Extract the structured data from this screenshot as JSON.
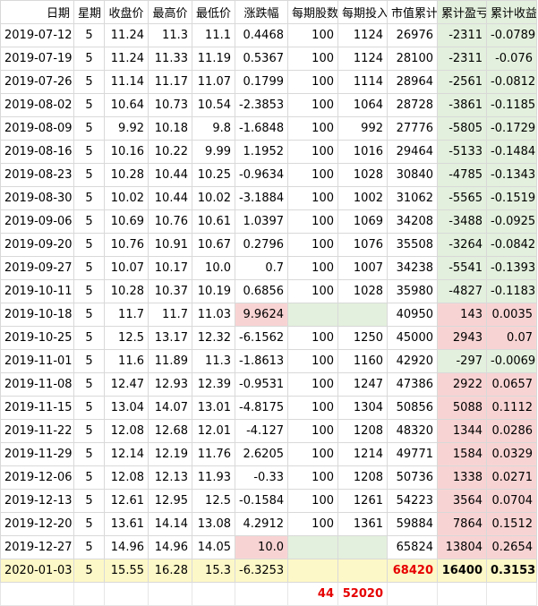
{
  "columns": [
    "日期",
    "星期",
    "收盘价",
    "最高价",
    "最低价",
    "涨跌幅",
    "每期股数",
    "每期投入",
    "市值累计",
    "累计盈亏",
    "累计收益率"
  ],
  "rows": [
    {
      "date": "2019-07-12",
      "week": "5",
      "close": "11.24",
      "high": "11.3",
      "low": "11.1",
      "change": "0.4468",
      "shares": "100",
      "invest": "1124",
      "value": "26976",
      "pnl": "-2311",
      "ret": "-0.0789",
      "change_hl": "",
      "pnl_hl": "green",
      "invest_hl": ""
    },
    {
      "date": "2019-07-19",
      "week": "5",
      "close": "11.24",
      "high": "11.33",
      "low": "11.19",
      "change": "0.5367",
      "shares": "100",
      "invest": "1124",
      "value": "28100",
      "pnl": "-2311",
      "ret": "-0.076",
      "change_hl": "",
      "pnl_hl": "green",
      "invest_hl": ""
    },
    {
      "date": "2019-07-26",
      "week": "5",
      "close": "11.14",
      "high": "11.17",
      "low": "11.07",
      "change": "0.1799",
      "shares": "100",
      "invest": "1114",
      "value": "28964",
      "pnl": "-2561",
      "ret": "-0.0812",
      "change_hl": "",
      "pnl_hl": "green",
      "invest_hl": ""
    },
    {
      "date": "2019-08-02",
      "week": "5",
      "close": "10.64",
      "high": "10.73",
      "low": "10.54",
      "change": "-2.3853",
      "shares": "100",
      "invest": "1064",
      "value": "28728",
      "pnl": "-3861",
      "ret": "-0.1185",
      "change_hl": "",
      "pnl_hl": "green",
      "invest_hl": ""
    },
    {
      "date": "2019-08-09",
      "week": "5",
      "close": "9.92",
      "high": "10.18",
      "low": "9.8",
      "change": "-1.6848",
      "shares": "100",
      "invest": "992",
      "value": "27776",
      "pnl": "-5805",
      "ret": "-0.1729",
      "change_hl": "",
      "pnl_hl": "green",
      "invest_hl": ""
    },
    {
      "date": "2019-08-16",
      "week": "5",
      "close": "10.16",
      "high": "10.22",
      "low": "9.99",
      "change": "1.1952",
      "shares": "100",
      "invest": "1016",
      "value": "29464",
      "pnl": "-5133",
      "ret": "-0.1484",
      "change_hl": "",
      "pnl_hl": "green",
      "invest_hl": ""
    },
    {
      "date": "2019-08-23",
      "week": "5",
      "close": "10.28",
      "high": "10.44",
      "low": "10.25",
      "change": "-0.9634",
      "shares": "100",
      "invest": "1028",
      "value": "30840",
      "pnl": "-4785",
      "ret": "-0.1343",
      "change_hl": "",
      "pnl_hl": "green",
      "invest_hl": ""
    },
    {
      "date": "2019-08-30",
      "week": "5",
      "close": "10.02",
      "high": "10.44",
      "low": "10.02",
      "change": "-3.1884",
      "shares": "100",
      "invest": "1002",
      "value": "31062",
      "pnl": "-5565",
      "ret": "-0.1519",
      "change_hl": "",
      "pnl_hl": "green",
      "invest_hl": ""
    },
    {
      "date": "2019-09-06",
      "week": "5",
      "close": "10.69",
      "high": "10.76",
      "low": "10.61",
      "change": "1.0397",
      "shares": "100",
      "invest": "1069",
      "value": "34208",
      "pnl": "-3488",
      "ret": "-0.0925",
      "change_hl": "",
      "pnl_hl": "green",
      "invest_hl": ""
    },
    {
      "date": "2019-09-20",
      "week": "5",
      "close": "10.76",
      "high": "10.91",
      "low": "10.67",
      "change": "0.2796",
      "shares": "100",
      "invest": "1076",
      "value": "35508",
      "pnl": "-3264",
      "ret": "-0.0842",
      "change_hl": "",
      "pnl_hl": "green",
      "invest_hl": ""
    },
    {
      "date": "2019-09-27",
      "week": "5",
      "close": "10.07",
      "high": "10.17",
      "low": "10.0",
      "change": "0.7",
      "shares": "100",
      "invest": "1007",
      "value": "34238",
      "pnl": "-5541",
      "ret": "-0.1393",
      "change_hl": "",
      "pnl_hl": "green",
      "invest_hl": ""
    },
    {
      "date": "2019-10-11",
      "week": "5",
      "close": "10.28",
      "high": "10.37",
      "low": "10.19",
      "change": "0.6856",
      "shares": "100",
      "invest": "1028",
      "value": "35980",
      "pnl": "-4827",
      "ret": "-0.1183",
      "change_hl": "",
      "pnl_hl": "green",
      "invest_hl": ""
    },
    {
      "date": "2019-10-18",
      "week": "5",
      "close": "11.7",
      "high": "11.7",
      "low": "11.03",
      "change": "9.9624",
      "shares": "",
      "invest": "",
      "value": "40950",
      "pnl": "143",
      "ret": "0.0035",
      "change_hl": "pink",
      "pnl_hl": "pink",
      "invest_hl": "green"
    },
    {
      "date": "2019-10-25",
      "week": "5",
      "close": "12.5",
      "high": "13.17",
      "low": "12.32",
      "change": "-6.1562",
      "shares": "100",
      "invest": "1250",
      "value": "45000",
      "pnl": "2943",
      "ret": "0.07",
      "change_hl": "",
      "pnl_hl": "pink",
      "invest_hl": ""
    },
    {
      "date": "2019-11-01",
      "week": "5",
      "close": "11.6",
      "high": "11.89",
      "low": "11.3",
      "change": "-1.8613",
      "shares": "100",
      "invest": "1160",
      "value": "42920",
      "pnl": "-297",
      "ret": "-0.0069",
      "change_hl": "",
      "pnl_hl": "green",
      "invest_hl": ""
    },
    {
      "date": "2019-11-08",
      "week": "5",
      "close": "12.47",
      "high": "12.93",
      "low": "12.39",
      "change": "-0.9531",
      "shares": "100",
      "invest": "1247",
      "value": "47386",
      "pnl": "2922",
      "ret": "0.0657",
      "change_hl": "",
      "pnl_hl": "pink",
      "invest_hl": ""
    },
    {
      "date": "2019-11-15",
      "week": "5",
      "close": "13.04",
      "high": "14.07",
      "low": "13.01",
      "change": "-4.8175",
      "shares": "100",
      "invest": "1304",
      "value": "50856",
      "pnl": "5088",
      "ret": "0.1112",
      "change_hl": "",
      "pnl_hl": "pink",
      "invest_hl": ""
    },
    {
      "date": "2019-11-22",
      "week": "5",
      "close": "12.08",
      "high": "12.68",
      "low": "12.01",
      "change": "-4.127",
      "shares": "100",
      "invest": "1208",
      "value": "48320",
      "pnl": "1344",
      "ret": "0.0286",
      "change_hl": "",
      "pnl_hl": "pink",
      "invest_hl": ""
    },
    {
      "date": "2019-11-29",
      "week": "5",
      "close": "12.14",
      "high": "12.19",
      "low": "11.76",
      "change": "2.6205",
      "shares": "100",
      "invest": "1214",
      "value": "49771",
      "pnl": "1584",
      "ret": "0.0329",
      "change_hl": "",
      "pnl_hl": "pink",
      "invest_hl": ""
    },
    {
      "date": "2019-12-06",
      "week": "5",
      "close": "12.08",
      "high": "12.13",
      "low": "11.93",
      "change": "-0.33",
      "shares": "100",
      "invest": "1208",
      "value": "50736",
      "pnl": "1338",
      "ret": "0.0271",
      "change_hl": "",
      "pnl_hl": "pink",
      "invest_hl": ""
    },
    {
      "date": "2019-12-13",
      "week": "5",
      "close": "12.61",
      "high": "12.95",
      "low": "12.5",
      "change": "-0.1584",
      "shares": "100",
      "invest": "1261",
      "value": "54223",
      "pnl": "3564",
      "ret": "0.0704",
      "change_hl": "",
      "pnl_hl": "pink",
      "invest_hl": ""
    },
    {
      "date": "2019-12-20",
      "week": "5",
      "close": "13.61",
      "high": "14.14",
      "low": "13.08",
      "change": "4.2912",
      "shares": "100",
      "invest": "1361",
      "value": "59884",
      "pnl": "7864",
      "ret": "0.1512",
      "change_hl": "",
      "pnl_hl": "pink",
      "invest_hl": ""
    },
    {
      "date": "2019-12-27",
      "week": "5",
      "close": "14.96",
      "high": "14.96",
      "low": "14.05",
      "change": "10.0",
      "shares": "",
      "invest": "",
      "value": "65824",
      "pnl": "13804",
      "ret": "0.2654",
      "change_hl": "pink",
      "pnl_hl": "pink",
      "invest_hl": "green"
    }
  ],
  "final_row": {
    "date": "2020-01-03",
    "week": "5",
    "close": "15.55",
    "high": "16.28",
    "low": "15.3",
    "change": "-6.3253",
    "shares": "",
    "invest": "",
    "value": "68420",
    "pnl": "16400",
    "ret": "0.3153"
  },
  "totals": {
    "shares": "44",
    "invest": "52020"
  },
  "colors": {
    "pink": "#f8d3d3",
    "green": "#e3f0dd",
    "yellow": "#fdf8c7",
    "total_red": "#e60000",
    "grid": "#d9d9d9"
  }
}
